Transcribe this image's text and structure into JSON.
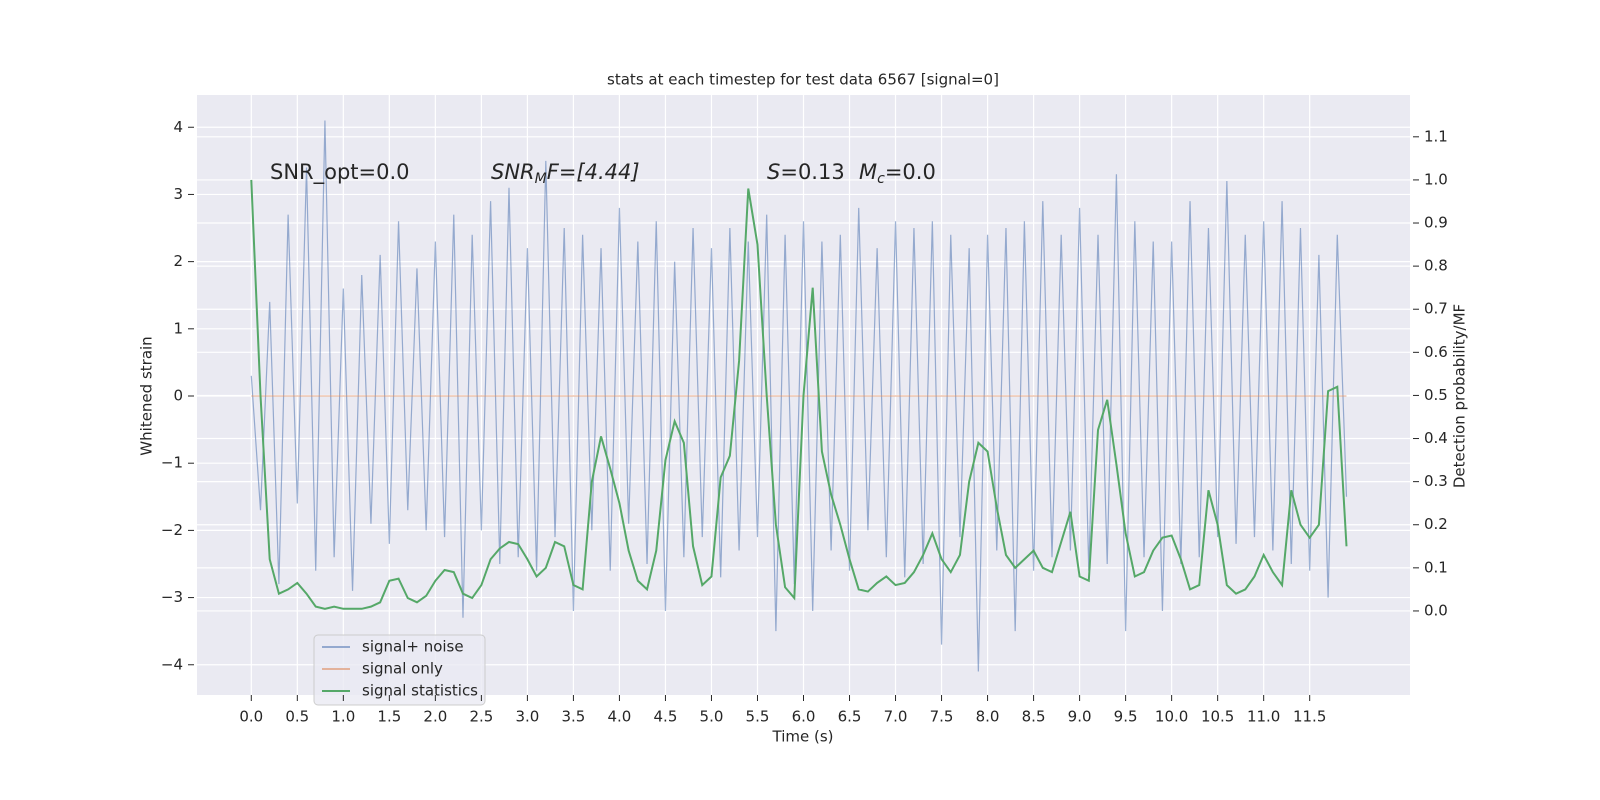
{
  "chart_data": {
    "type": "line",
    "title": "stats at each timestep for test data 6567 [signal=0]",
    "xlabel": "Time (s)",
    "ylabel": "Whitened strain",
    "y2label": "Detection probability/MF",
    "x": [
      0,
      0.1,
      0.2,
      0.3,
      0.4,
      0.5,
      0.6,
      0.7,
      0.8,
      0.9,
      1,
      1.1,
      1.2,
      1.3,
      1.4,
      1.5,
      1.6,
      1.7,
      1.8,
      1.9,
      2,
      2.1,
      2.2,
      2.3,
      2.4,
      2.5,
      2.6,
      2.7,
      2.8,
      2.9,
      3,
      3.1,
      3.2,
      3.3,
      3.4,
      3.5,
      3.6,
      3.7,
      3.8,
      3.9,
      4,
      4.1,
      4.2,
      4.3,
      4.4,
      4.5,
      4.6,
      4.7,
      4.8,
      4.9,
      5,
      5.1,
      5.2,
      5.3,
      5.4,
      5.5,
      5.6,
      5.7,
      5.8,
      5.9,
      6,
      6.1,
      6.2,
      6.3,
      6.4,
      6.5,
      6.6,
      6.7,
      6.8,
      6.9,
      7,
      7.1,
      7.2,
      7.3,
      7.4,
      7.5,
      7.6,
      7.7,
      7.8,
      7.9,
      8,
      8.1,
      8.2,
      8.3,
      8.4,
      8.5,
      8.6,
      8.7,
      8.8,
      8.9,
      9,
      9.1,
      9.2,
      9.3,
      9.4,
      9.5,
      9.6,
      9.7,
      9.8,
      9.9,
      10,
      10.1,
      10.2,
      10.3,
      10.4,
      10.5,
      10.6,
      10.7,
      10.8,
      10.9,
      11,
      11.1,
      11.2,
      11.3,
      11.4,
      11.5,
      11.6,
      11.7,
      11.8,
      11.9
    ],
    "series": [
      {
        "name": "signal+ noise",
        "color": "#4c72b0",
        "axis": "y",
        "values": [
          0.3,
          -1.7,
          1.4,
          -2.8,
          2.7,
          -1.6,
          3.4,
          -2.6,
          4.1,
          -2.4,
          1.6,
          -2.9,
          1.8,
          -1.9,
          2.1,
          -2.2,
          2.6,
          -1.7,
          1.9,
          -2.0,
          2.3,
          -2.1,
          2.7,
          -3.3,
          2.4,
          -2.0,
          2.9,
          -2.5,
          3.1,
          -2.4,
          2.2,
          -2.6,
          3.5,
          -2.1,
          2.5,
          -3.2,
          2.4,
          -2.0,
          2.2,
          -2.6,
          2.8,
          -1.9,
          2.3,
          -2.5,
          2.6,
          -3.2,
          2.0,
          -2.4,
          2.5,
          -2.1,
          2.2,
          -2.7,
          2.5,
          -2.3,
          2.3,
          -2.1,
          2.7,
          -3.5,
          2.4,
          -2.8,
          2.6,
          -3.2,
          2.3,
          -2.3,
          2.4,
          -2.6,
          2.8,
          -2.0,
          2.2,
          -2.4,
          2.6,
          -2.7,
          2.5,
          -2.5,
          2.6,
          -3.7,
          2.4,
          -2.1,
          2.2,
          -4.1,
          2.4,
          -2.3,
          2.5,
          -3.5,
          2.6,
          -2.6,
          2.9,
          -2.4,
          2.4,
          -2.3,
          2.8,
          -2.6,
          2.4,
          -2.5,
          3.3,
          -3.5,
          2.6,
          -2.4,
          2.3,
          -3.2,
          2.3,
          -2.5,
          2.9,
          -2.4,
          2.5,
          -2.1,
          3.2,
          -2.2,
          2.4,
          -2.1,
          2.6,
          -2.3,
          2.9,
          -2.5,
          2.5,
          -2.6,
          2.1,
          -3.0,
          2.4,
          -1.5
        ]
      },
      {
        "name": "signal only",
        "color": "#dd8452",
        "axis": "y",
        "values": [
          0,
          0,
          0,
          0,
          0,
          0,
          0,
          0,
          0,
          0,
          0,
          0,
          0,
          0,
          0,
          0,
          0,
          0,
          0,
          0,
          0,
          0,
          0,
          0,
          0,
          0,
          0,
          0,
          0,
          0,
          0,
          0,
          0,
          0,
          0,
          0,
          0,
          0,
          0,
          0,
          0,
          0,
          0,
          0,
          0,
          0,
          0,
          0,
          0,
          0,
          0,
          0,
          0,
          0,
          0,
          0,
          0,
          0,
          0,
          0,
          0,
          0,
          0,
          0,
          0,
          0,
          0,
          0,
          0,
          0,
          0,
          0,
          0,
          0,
          0,
          0,
          0,
          0,
          0,
          0,
          0,
          0,
          0,
          0,
          0,
          0,
          0,
          0,
          0,
          0,
          0,
          0,
          0,
          0,
          0,
          0,
          0,
          0,
          0,
          0,
          0,
          0,
          0,
          0,
          0,
          0,
          0,
          0,
          0,
          0,
          0,
          0,
          0,
          0,
          0,
          0,
          0,
          0,
          0,
          0
        ]
      },
      {
        "name": "signal statistics",
        "color": "#55a868",
        "axis": "y2",
        "values": [
          1.0,
          0.5,
          0.12,
          0.04,
          0.05,
          0.065,
          0.04,
          0.01,
          0.005,
          0.01,
          0.005,
          0.005,
          0.005,
          0.01,
          0.02,
          0.07,
          0.075,
          0.03,
          0.02,
          0.035,
          0.07,
          0.095,
          0.09,
          0.04,
          0.03,
          0.06,
          0.12,
          0.145,
          0.16,
          0.155,
          0.12,
          0.08,
          0.1,
          0.16,
          0.15,
          0.06,
          0.05,
          0.3,
          0.405,
          0.33,
          0.25,
          0.14,
          0.07,
          0.05,
          0.14,
          0.35,
          0.44,
          0.39,
          0.15,
          0.06,
          0.08,
          0.31,
          0.36,
          0.58,
          0.98,
          0.85,
          0.5,
          0.2,
          0.055,
          0.03,
          0.5,
          0.75,
          0.37,
          0.27,
          0.2,
          0.12,
          0.05,
          0.045,
          0.065,
          0.08,
          0.06,
          0.065,
          0.09,
          0.13,
          0.18,
          0.12,
          0.09,
          0.13,
          0.3,
          0.39,
          0.37,
          0.24,
          0.13,
          0.1,
          0.12,
          0.14,
          0.1,
          0.09,
          0.16,
          0.23,
          0.08,
          0.07,
          0.42,
          0.49,
          0.34,
          0.18,
          0.08,
          0.09,
          0.14,
          0.17,
          0.175,
          0.12,
          0.05,
          0.06,
          0.28,
          0.2,
          0.06,
          0.04,
          0.05,
          0.08,
          0.13,
          0.09,
          0.06,
          0.28,
          0.2,
          0.17,
          0.2,
          0.51,
          0.52,
          0.15
        ]
      }
    ],
    "xlim": [
      -0.59,
      12.59
    ],
    "xticks": [
      {
        "value": 0,
        "label": "0.0"
      },
      {
        "value": 0.5,
        "label": "0.5"
      },
      {
        "value": 1,
        "label": "1.0"
      },
      {
        "value": 1.5,
        "label": "1.5"
      },
      {
        "value": 2,
        "label": "2.0"
      },
      {
        "value": 2.5,
        "label": "2.5"
      },
      {
        "value": 3,
        "label": "3.0"
      },
      {
        "value": 3.5,
        "label": "3.5"
      },
      {
        "value": 4,
        "label": "4.0"
      },
      {
        "value": 4.5,
        "label": "4.5"
      },
      {
        "value": 5,
        "label": "5.0"
      },
      {
        "value": 5.5,
        "label": "5.5"
      },
      {
        "value": 6,
        "label": "6.0"
      },
      {
        "value": 6.5,
        "label": "6.5"
      },
      {
        "value": 7,
        "label": "7.0"
      },
      {
        "value": 7.5,
        "label": "7.5"
      },
      {
        "value": 8,
        "label": "8.0"
      },
      {
        "value": 8.5,
        "label": "8.5"
      },
      {
        "value": 9,
        "label": "9.0"
      },
      {
        "value": 9.5,
        "label": "9.5"
      },
      {
        "value": 10,
        "label": "10.0"
      },
      {
        "value": 10.5,
        "label": "10.5"
      },
      {
        "value": 11,
        "label": "11.0"
      },
      {
        "value": 11.5,
        "label": "11.5"
      }
    ],
    "ylim": [
      -4.45,
      4.48
    ],
    "yticks": [
      {
        "value": -4,
        "label": "−4"
      },
      {
        "value": -3,
        "label": "−3"
      },
      {
        "value": -2,
        "label": "−2"
      },
      {
        "value": -1,
        "label": "−1"
      },
      0,
      1,
      2,
      3,
      4
    ],
    "y2lim": [
      -0.195,
      1.197
    ],
    "y2ticks": [
      {
        "value": 0,
        "label": "0.0"
      },
      0.1,
      0.2,
      0.3,
      0.4,
      0.5,
      0.6,
      0.7,
      0.8,
      0.9,
      {
        "value": 1,
        "label": "1.0"
      },
      1.1
    ],
    "grid": true,
    "legend": "lower left",
    "annotations": [
      {
        "text": "SNR_opt=0.0"
      },
      {
        "base": "SNR",
        "sub": "M",
        "rest": "F=[4.44]"
      },
      {
        "base": "S",
        "rest": "=0.13"
      },
      {
        "base": "M",
        "sub": "c",
        "rest": "=0.0"
      }
    ]
  }
}
